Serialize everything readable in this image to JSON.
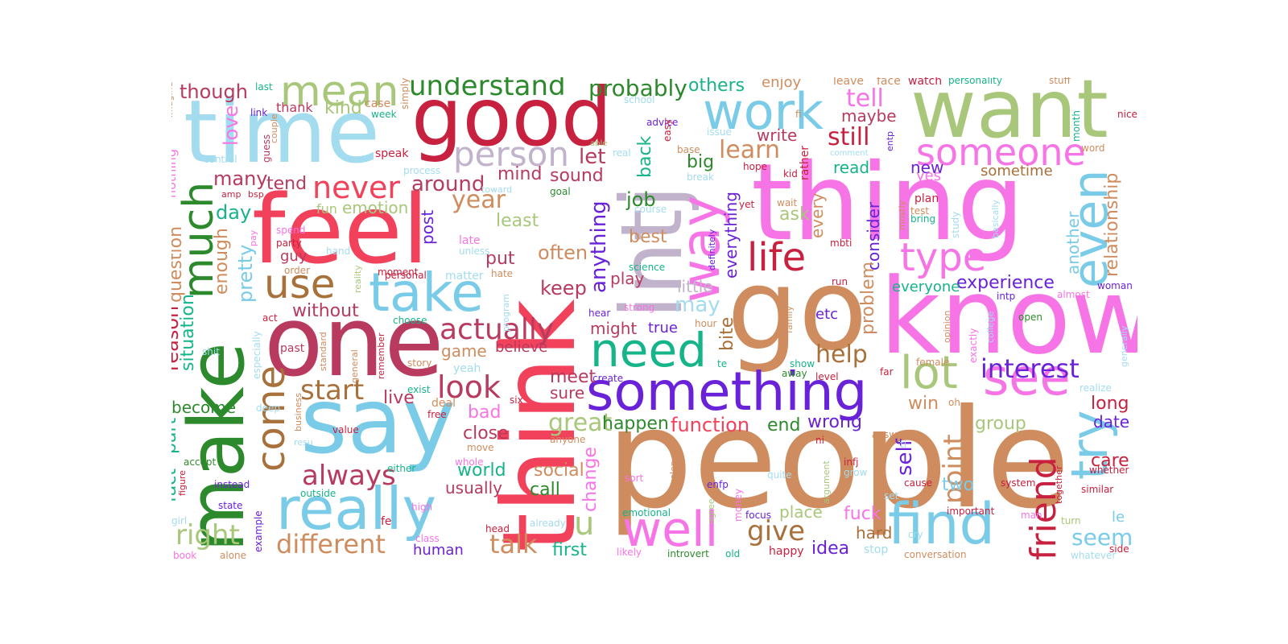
{
  "palette": {
    "pink": "#f774e6",
    "red": "#f2415b",
    "crimson": "#c8203f",
    "skyblue": "#79cbe8",
    "lightblue": "#a3dcef",
    "lavender": "#c2b3cc",
    "green": "#2c8a2c",
    "olive": "#a8c77a",
    "tan": "#cf8c5e",
    "purple": "#6a22d8",
    "teal": "#16b489",
    "rose": "#b83a5e",
    "brown": "#a8703a"
  },
  "words": [
    {
      "text": "people",
      "color": "tan"
    },
    {
      "text": "think",
      "color": "red"
    },
    {
      "text": "know",
      "color": "pink"
    },
    {
      "text": "thing",
      "color": "pink"
    },
    {
      "text": "make",
      "color": "green"
    },
    {
      "text": "feel",
      "color": "red"
    },
    {
      "text": "say",
      "color": "skyblue"
    },
    {
      "text": "one",
      "color": "rose"
    },
    {
      "text": "time",
      "color": "lightblue"
    },
    {
      "text": "good",
      "color": "crimson"
    },
    {
      "text": "want",
      "color": "olive"
    },
    {
      "text": "go",
      "color": "tan"
    },
    {
      "text": "intj",
      "color": "lavender"
    },
    {
      "text": "something",
      "color": "purple"
    },
    {
      "text": "really",
      "color": "skyblue"
    },
    {
      "text": "well",
      "color": "pink"
    },
    {
      "text": "find",
      "color": "skyblue"
    },
    {
      "text": "work",
      "color": "skyblue"
    },
    {
      "text": "way",
      "color": "pink"
    },
    {
      "text": "take",
      "color": "skyblue"
    },
    {
      "text": "need",
      "color": "teal"
    },
    {
      "text": "see",
      "color": "pink"
    },
    {
      "text": "even",
      "color": "skyblue"
    },
    {
      "text": "try",
      "color": "skyblue"
    },
    {
      "text": "much",
      "color": "green"
    },
    {
      "text": "someone",
      "color": "pink"
    },
    {
      "text": "life",
      "color": "crimson"
    },
    {
      "text": "type",
      "color": "pink"
    },
    {
      "text": "person",
      "color": "lavender"
    },
    {
      "text": "mean",
      "color": "olive"
    },
    {
      "text": "use",
      "color": "brown"
    },
    {
      "text": "lot",
      "color": "olive"
    },
    {
      "text": "come",
      "color": "brown"
    },
    {
      "text": "friend",
      "color": "crimson"
    },
    {
      "text": "understand",
      "color": "green"
    },
    {
      "text": "look",
      "color": "rose"
    },
    {
      "text": "actually",
      "color": "rose"
    },
    {
      "text": "interest",
      "color": "purple"
    },
    {
      "text": "never",
      "color": "red"
    },
    {
      "text": "always",
      "color": "rose"
    },
    {
      "text": "different",
      "color": "tan"
    },
    {
      "text": "start",
      "color": "brown"
    },
    {
      "text": "talk",
      "color": "tan"
    },
    {
      "text": "right",
      "color": "olive"
    },
    {
      "text": "probably",
      "color": "green"
    },
    {
      "text": "point",
      "color": "tan"
    },
    {
      "text": "give",
      "color": "brown"
    },
    {
      "text": "still",
      "color": "crimson"
    },
    {
      "text": "learn",
      "color": "tan"
    },
    {
      "text": "tell",
      "color": "pink"
    },
    {
      "text": "experience",
      "color": "purple"
    },
    {
      "text": "seem",
      "color": "skyblue"
    },
    {
      "text": "help",
      "color": "brown"
    },
    {
      "text": "year",
      "color": "tan"
    },
    {
      "text": "function",
      "color": "red"
    },
    {
      "text": "around",
      "color": "rose"
    },
    {
      "text": "u",
      "color": "olive"
    },
    {
      "text": "anything",
      "color": "purple"
    },
    {
      "text": "great",
      "color": "olive"
    },
    {
      "text": "self",
      "color": "purple"
    },
    {
      "text": "relationship",
      "color": "tan"
    },
    {
      "text": "others",
      "color": "teal"
    },
    {
      "text": "though",
      "color": "rose"
    },
    {
      "text": "many",
      "color": "rose"
    },
    {
      "text": "enough",
      "color": "tan"
    },
    {
      "text": "pretty",
      "color": "skyblue"
    },
    {
      "text": "day",
      "color": "teal"
    },
    {
      "text": "love",
      "color": "pink"
    },
    {
      "text": "kind",
      "color": "olive"
    },
    {
      "text": "thank",
      "color": "rose"
    },
    {
      "text": "tend",
      "color": "rose"
    },
    {
      "text": "emotion",
      "color": "olive"
    },
    {
      "text": "fun",
      "color": "olive"
    },
    {
      "text": "question",
      "color": "tan"
    },
    {
      "text": "reason",
      "color": "crimson"
    },
    {
      "text": "situation",
      "color": "teal"
    },
    {
      "text": "fact",
      "color": "teal"
    },
    {
      "text": "part",
      "color": "teal"
    },
    {
      "text": "without",
      "color": "rose"
    },
    {
      "text": "guy",
      "color": "rose"
    },
    {
      "text": "become",
      "color": "green"
    },
    {
      "text": "post",
      "color": "purple"
    },
    {
      "text": "mind",
      "color": "rose"
    },
    {
      "text": "sound",
      "color": "rose"
    },
    {
      "text": "let",
      "color": "rose"
    },
    {
      "text": "least",
      "color": "olive"
    },
    {
      "text": "put",
      "color": "rose"
    },
    {
      "text": "often",
      "color": "tan"
    },
    {
      "text": "keep",
      "color": "rose"
    },
    {
      "text": "job",
      "color": "green"
    },
    {
      "text": "back",
      "color": "teal"
    },
    {
      "text": "big",
      "color": "green"
    },
    {
      "text": "best",
      "color": "tan"
    },
    {
      "text": "play",
      "color": "rose"
    },
    {
      "text": "may",
      "color": "lightblue"
    },
    {
      "text": "little",
      "color": "lavender"
    },
    {
      "text": "might",
      "color": "rose"
    },
    {
      "text": "true",
      "color": "purple"
    },
    {
      "text": "bite",
      "color": "brown"
    },
    {
      "text": "everything",
      "color": "purple"
    },
    {
      "text": "write",
      "color": "rose"
    },
    {
      "text": "maybe",
      "color": "rose"
    },
    {
      "text": "read",
      "color": "teal"
    },
    {
      "text": "new",
      "color": "purple"
    },
    {
      "text": "sometime",
      "color": "brown"
    },
    {
      "text": "yes",
      "color": "pink"
    },
    {
      "text": "ask",
      "color": "olive"
    },
    {
      "text": "every",
      "color": "tan"
    },
    {
      "text": "consider",
      "color": "purple"
    },
    {
      "text": "problem",
      "color": "tan"
    },
    {
      "text": "everyone",
      "color": "teal"
    },
    {
      "text": "etc",
      "color": "purple"
    },
    {
      "text": "game",
      "color": "tan"
    },
    {
      "text": "believe",
      "color": "rose"
    },
    {
      "text": "live",
      "color": "rose"
    },
    {
      "text": "meet",
      "color": "rose"
    },
    {
      "text": "sure",
      "color": "rose"
    },
    {
      "text": "bad",
      "color": "pink"
    },
    {
      "text": "close",
      "color": "rose"
    },
    {
      "text": "world",
      "color": "teal"
    },
    {
      "text": "usually",
      "color": "rose"
    },
    {
      "text": "social",
      "color": "tan"
    },
    {
      "text": "call",
      "color": "green"
    },
    {
      "text": "change",
      "color": "pink"
    },
    {
      "text": "happen",
      "color": "green"
    },
    {
      "text": "end",
      "color": "green"
    },
    {
      "text": "wrong",
      "color": "purple"
    },
    {
      "text": "win",
      "color": "tan"
    },
    {
      "text": "group",
      "color": "olive"
    },
    {
      "text": "long",
      "color": "crimson"
    },
    {
      "text": "date",
      "color": "purple"
    },
    {
      "text": "care",
      "color": "crimson"
    },
    {
      "text": "two",
      "color": "skyblue"
    },
    {
      "text": "fuck",
      "color": "pink"
    },
    {
      "text": "hard",
      "color": "brown"
    },
    {
      "text": "idea",
      "color": "purple"
    },
    {
      "text": "place",
      "color": "olive"
    },
    {
      "text": "first",
      "color": "teal"
    },
    {
      "text": "human",
      "color": "purple"
    },
    {
      "text": "another",
      "color": "skyblue"
    },
    {
      "text": "enjoy",
      "color": "tan"
    },
    {
      "text": "leave",
      "color": "tan"
    },
    {
      "text": "face",
      "color": "tan"
    },
    {
      "text": "watch",
      "color": "crimson"
    },
    {
      "text": "personality",
      "color": "teal"
    },
    {
      "text": "stuff",
      "color": "tan"
    },
    {
      "text": "nice",
      "color": "crimson"
    },
    {
      "text": "word",
      "color": "tan"
    },
    {
      "text": "month",
      "color": "teal"
    },
    {
      "text": "last",
      "color": "teal"
    },
    {
      "text": "link",
      "color": "purple"
    },
    {
      "text": "case",
      "color": "tan"
    },
    {
      "text": "week",
      "color": "teal"
    },
    {
      "text": "simply",
      "color": "tan"
    },
    {
      "text": "imagine",
      "color": "tan"
    },
    {
      "text": "nothing",
      "color": "pink"
    },
    {
      "text": "control",
      "color": "lightblue"
    },
    {
      "text": "couple",
      "color": "tan"
    },
    {
      "text": "guess",
      "color": "rose"
    },
    {
      "text": "speak",
      "color": "crimson"
    },
    {
      "text": "process",
      "color": "lightblue"
    },
    {
      "text": "school",
      "color": "lightblue"
    },
    {
      "text": "advice",
      "color": "purple"
    },
    {
      "text": "real",
      "color": "lightblue"
    },
    {
      "text": "able",
      "color": "olive"
    },
    {
      "text": "easy",
      "color": "crimson"
    },
    {
      "text": "base",
      "color": "tan"
    },
    {
      "text": "issue",
      "color": "lightblue"
    },
    {
      "text": "fi",
      "color": "tan"
    },
    {
      "text": "comment",
      "color": "lightblue"
    },
    {
      "text": "hope",
      "color": "crimson"
    },
    {
      "text": "kid",
      "color": "crimson"
    },
    {
      "text": "rather",
      "color": "crimson"
    },
    {
      "text": "entp",
      "color": "purple"
    },
    {
      "text": "break",
      "color": "lightblue"
    },
    {
      "text": "toward",
      "color": "lightblue"
    },
    {
      "text": "goal",
      "color": "green"
    },
    {
      "text": "course",
      "color": "lightblue"
    },
    {
      "text": "yet",
      "color": "crimson"
    },
    {
      "text": "wait",
      "color": "tan"
    },
    {
      "text": "plan",
      "color": "crimson"
    },
    {
      "text": "test",
      "color": "tan"
    },
    {
      "text": "bring",
      "color": "teal"
    },
    {
      "text": "mostly",
      "color": "tan"
    },
    {
      "text": "exactly",
      "color": "pink"
    },
    {
      "text": "basically",
      "color": "lightblue"
    },
    {
      "text": "study",
      "color": "lightblue"
    },
    {
      "text": "amp",
      "color": "crimson"
    },
    {
      "text": "bsp",
      "color": "crimson"
    },
    {
      "text": "spend",
      "color": "pink"
    },
    {
      "text": "party",
      "color": "crimson"
    },
    {
      "text": "pay",
      "color": "pink"
    },
    {
      "text": "hand",
      "color": "lightblue"
    },
    {
      "text": "late",
      "color": "pink"
    },
    {
      "text": "unless",
      "color": "lightblue"
    },
    {
      "text": "order",
      "color": "tan"
    },
    {
      "text": "act",
      "color": "crimson"
    },
    {
      "text": "reality",
      "color": "olive"
    },
    {
      "text": "moment",
      "color": "crimson"
    },
    {
      "text": "personal",
      "color": "crimson"
    },
    {
      "text": "matter",
      "color": "lightblue"
    },
    {
      "text": "hate",
      "color": "tan"
    },
    {
      "text": "program",
      "color": "lightblue"
    },
    {
      "text": "science",
      "color": "teal"
    },
    {
      "text": "definitely",
      "color": "purple"
    },
    {
      "text": "run",
      "color": "crimson"
    },
    {
      "text": "hear",
      "color": "purple"
    },
    {
      "text": "strong",
      "color": "pink"
    },
    {
      "text": "hour",
      "color": "tan"
    },
    {
      "text": "mbti",
      "color": "crimson"
    },
    {
      "text": "woman",
      "color": "purple"
    },
    {
      "text": "almost",
      "color": "pink"
    },
    {
      "text": "intp",
      "color": "purple"
    },
    {
      "text": "open",
      "color": "green"
    },
    {
      "text": "family",
      "color": "tan"
    },
    {
      "text": "opinion",
      "color": "tan"
    },
    {
      "text": "college",
      "color": "lightblue"
    },
    {
      "text": "generally",
      "color": "lightblue"
    },
    {
      "text": "past",
      "color": "rose"
    },
    {
      "text": "standard",
      "color": "tan"
    },
    {
      "text": "remember",
      "color": "crimson"
    },
    {
      "text": "general",
      "color": "tan"
    },
    {
      "text": "especially",
      "color": "lightblue"
    },
    {
      "text": "shit",
      "color": "lightblue"
    },
    {
      "text": "story",
      "color": "tan"
    },
    {
      "text": "yeah",
      "color": "lightblue"
    },
    {
      "text": "te",
      "color": "teal"
    },
    {
      "text": "show",
      "color": "teal"
    },
    {
      "text": "away",
      "color": "green"
    },
    {
      "text": "level",
      "color": "crimson"
    },
    {
      "text": "female",
      "color": "tan"
    },
    {
      "text": "far",
      "color": "crimson"
    },
    {
      "text": "oh",
      "color": "tan"
    },
    {
      "text": "realize",
      "color": "lightblue"
    },
    {
      "text": "create",
      "color": "purple"
    },
    {
      "text": "exist",
      "color": "teal"
    },
    {
      "text": "deal",
      "color": "tan"
    },
    {
      "text": "free",
      "color": "crimson"
    },
    {
      "text": "six",
      "color": "crimson"
    },
    {
      "text": "business",
      "color": "tan"
    },
    {
      "text": "deep",
      "color": "lightblue"
    },
    {
      "text": "value",
      "color": "crimson"
    },
    {
      "text": "resu",
      "color": "lightblue"
    },
    {
      "text": "move",
      "color": "tan"
    },
    {
      "text": "anyone",
      "color": "tan"
    },
    {
      "text": "answer",
      "color": "tan"
    },
    {
      "text": "ni",
      "color": "crimson"
    },
    {
      "text": "ti",
      "color": "lightblue"
    },
    {
      "text": "whole",
      "color": "pink"
    },
    {
      "text": "either",
      "color": "teal"
    },
    {
      "text": "accept",
      "color": "green"
    },
    {
      "text": "figure",
      "color": "crimson"
    },
    {
      "text": "instead",
      "color": "purple"
    },
    {
      "text": "outside",
      "color": "teal"
    },
    {
      "text": "state",
      "color": "purple"
    },
    {
      "text": "sort",
      "color": "pink"
    },
    {
      "text": "quite",
      "color": "lightblue"
    },
    {
      "text": "develop",
      "color": "tan"
    },
    {
      "text": "argument",
      "color": "olive"
    },
    {
      "text": "enfp",
      "color": "purple"
    },
    {
      "text": "infj",
      "color": "crimson"
    },
    {
      "text": "grow",
      "color": "lightblue"
    },
    {
      "text": "cause",
      "color": "crimson"
    },
    {
      "text": "whether",
      "color": "crimson"
    },
    {
      "text": "system",
      "color": "crimson"
    },
    {
      "text": "similar",
      "color": "crimson"
    },
    {
      "text": "together",
      "color": "crimson"
    },
    {
      "text": "example",
      "color": "purple"
    },
    {
      "text": "fe",
      "color": "crimson"
    },
    {
      "text": "high",
      "color": "pink"
    },
    {
      "text": "class",
      "color": "pink"
    },
    {
      "text": "head",
      "color": "crimson"
    },
    {
      "text": "already",
      "color": "lightblue"
    },
    {
      "text": "emotional",
      "color": "teal"
    },
    {
      "text": "money",
      "color": "pink"
    },
    {
      "text": "agree",
      "color": "olive"
    },
    {
      "text": "focus",
      "color": "purple"
    },
    {
      "text": "important",
      "color": "crimson"
    },
    {
      "text": "man",
      "color": "pink"
    },
    {
      "text": "turn",
      "color": "olive"
    },
    {
      "text": "le",
      "color": "skyblue"
    },
    {
      "text": "set",
      "color": "lightblue"
    },
    {
      "text": "cry",
      "color": "lightblue"
    },
    {
      "text": "girl",
      "color": "lightblue"
    },
    {
      "text": "book",
      "color": "pink"
    },
    {
      "text": "alone",
      "color": "tan"
    },
    {
      "text": "likely",
      "color": "pink"
    },
    {
      "text": "introvert",
      "color": "green"
    },
    {
      "text": "old",
      "color": "teal"
    },
    {
      "text": "happy",
      "color": "crimson"
    },
    {
      "text": "stop",
      "color": "lightblue"
    },
    {
      "text": "conversation",
      "color": "tan"
    },
    {
      "text": "whatever",
      "color": "lightblue"
    },
    {
      "text": "side",
      "color": "crimson"
    },
    {
      "text": "choose",
      "color": "teal"
    }
  ]
}
